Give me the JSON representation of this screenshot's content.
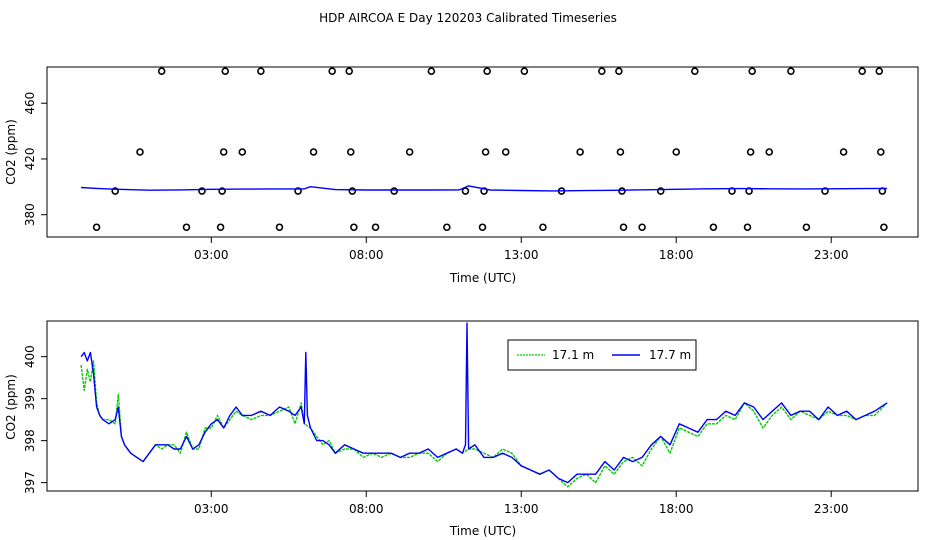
{
  "figure_title": "HDP AIRCOA E  Day 120203  Calibrated Timeseries",
  "colors": {
    "series_a": "#00cc00",
    "series_b": "#0000ff",
    "axis": "#000000",
    "markers": "#000000"
  },
  "chart_data": [
    {
      "type": "scatter",
      "title": "",
      "xlabel": "Time (UTC)",
      "ylabel": "CO2 (ppm)",
      "x_unit": "hours UTC",
      "xlim": [
        -2.3,
        25.8
      ],
      "ylim": [
        364,
        486
      ],
      "x_ticks": [
        {
          "v": 3,
          "label": "03:00"
        },
        {
          "v": 8,
          "label": "08:00"
        },
        {
          "v": 13,
          "label": "13:00"
        },
        {
          "v": 18,
          "label": "18:00"
        },
        {
          "v": 23,
          "label": "23:00"
        }
      ],
      "y_ticks": [
        {
          "v": 380,
          "label": "380"
        },
        {
          "v": 420,
          "label": "420"
        },
        {
          "v": 460,
          "label": "460"
        }
      ],
      "grid": false,
      "markers": [
        {
          "x": -0.7,
          "y": 371
        },
        {
          "x": -0.1,
          "y": 397
        },
        {
          "x": 0.7,
          "y": 425
        },
        {
          "x": 1.4,
          "y": 483
        },
        {
          "x": 2.2,
          "y": 371
        },
        {
          "x": 2.7,
          "y": 397
        },
        {
          "x": 3.3,
          "y": 371
        },
        {
          "x": 3.35,
          "y": 397
        },
        {
          "x": 3.4,
          "y": 425
        },
        {
          "x": 3.45,
          "y": 483
        },
        {
          "x": 4.0,
          "y": 425
        },
        {
          "x": 4.6,
          "y": 483
        },
        {
          "x": 5.2,
          "y": 371
        },
        {
          "x": 5.8,
          "y": 397
        },
        {
          "x": 6.3,
          "y": 425
        },
        {
          "x": 6.9,
          "y": 483
        },
        {
          "x": 7.45,
          "y": 483
        },
        {
          "x": 7.5,
          "y": 425
        },
        {
          "x": 7.55,
          "y": 397
        },
        {
          "x": 7.6,
          "y": 371
        },
        {
          "x": 8.3,
          "y": 371
        },
        {
          "x": 8.9,
          "y": 397
        },
        {
          "x": 9.4,
          "y": 425
        },
        {
          "x": 10.1,
          "y": 483
        },
        {
          "x": 10.6,
          "y": 371
        },
        {
          "x": 11.2,
          "y": 397
        },
        {
          "x": 11.75,
          "y": 371
        },
        {
          "x": 11.8,
          "y": 397
        },
        {
          "x": 11.85,
          "y": 425
        },
        {
          "x": 11.9,
          "y": 483
        },
        {
          "x": 12.5,
          "y": 425
        },
        {
          "x": 13.1,
          "y": 483
        },
        {
          "x": 13.7,
          "y": 371
        },
        {
          "x": 14.3,
          "y": 397
        },
        {
          "x": 14.9,
          "y": 425
        },
        {
          "x": 15.6,
          "y": 483
        },
        {
          "x": 16.15,
          "y": 483
        },
        {
          "x": 16.2,
          "y": 425
        },
        {
          "x": 16.25,
          "y": 397
        },
        {
          "x": 16.3,
          "y": 371
        },
        {
          "x": 16.9,
          "y": 371
        },
        {
          "x": 17.5,
          "y": 397
        },
        {
          "x": 18.0,
          "y": 425
        },
        {
          "x": 18.6,
          "y": 483
        },
        {
          "x": 19.2,
          "y": 371
        },
        {
          "x": 19.8,
          "y": 397
        },
        {
          "x": 20.3,
          "y": 371
        },
        {
          "x": 20.35,
          "y": 397
        },
        {
          "x": 20.4,
          "y": 425
        },
        {
          "x": 20.45,
          "y": 483
        },
        {
          "x": 21.0,
          "y": 425
        },
        {
          "x": 21.7,
          "y": 483
        },
        {
          "x": 22.2,
          "y": 371
        },
        {
          "x": 22.8,
          "y": 397
        },
        {
          "x": 23.4,
          "y": 425
        },
        {
          "x": 24.0,
          "y": 483
        },
        {
          "x": 24.55,
          "y": 483
        },
        {
          "x": 24.6,
          "y": 425
        },
        {
          "x": 24.65,
          "y": 397
        },
        {
          "x": 24.7,
          "y": 371
        }
      ],
      "series": [
        {
          "x": [
            -1.2,
            -0.7,
            0,
            1,
            2,
            3,
            4,
            5,
            6,
            6.2,
            7,
            8,
            9,
            10,
            11,
            11.3,
            12,
            13,
            14,
            15,
            16,
            17,
            18,
            19,
            20,
            21,
            22,
            23,
            24,
            24.8
          ],
          "values": [
            399.5,
            398.9,
            398.2,
            397.6,
            397.8,
            398.2,
            398.4,
            398.5,
            398.5,
            400.1,
            398.0,
            397.7,
            397.7,
            397.7,
            397.8,
            400.7,
            397.7,
            397.4,
            397.1,
            397.3,
            397.5,
            397.9,
            398.2,
            398.6,
            398.7,
            398.6,
            398.5,
            398.6,
            398.7,
            398.9
          ]
        }
      ]
    },
    {
      "type": "line",
      "title": "",
      "xlabel": "Time (UTC)",
      "ylabel": "CO2 (ppm)",
      "x_unit": "hours UTC",
      "xlim": [
        -2.3,
        25.8
      ],
      "ylim": [
        396.8,
        400.85
      ],
      "x_ticks": [
        {
          "v": 3,
          "label": "03:00"
        },
        {
          "v": 8,
          "label": "08:00"
        },
        {
          "v": 13,
          "label": "13:00"
        },
        {
          "v": 18,
          "label": "18:00"
        },
        {
          "v": 23,
          "label": "23:00"
        }
      ],
      "y_ticks": [
        {
          "v": 397,
          "label": "397"
        },
        {
          "v": 398,
          "label": "398"
        },
        {
          "v": 399,
          "label": "399"
        },
        {
          "v": 400,
          "label": "400"
        }
      ],
      "grid": false,
      "legend_position": "top-center",
      "series": [
        {
          "name": "17.1 m",
          "x": [
            -1.2,
            -1.1,
            -1.0,
            -0.9,
            -0.8,
            -0.7,
            -0.6,
            -0.5,
            -0.3,
            -0.1,
            0.0,
            0.1,
            0.2,
            0.4,
            0.6,
            0.8,
            1.0,
            1.2,
            1.4,
            1.6,
            1.8,
            2.0,
            2.2,
            2.4,
            2.6,
            2.8,
            3.0,
            3.2,
            3.4,
            3.6,
            3.8,
            4.0,
            4.3,
            4.6,
            4.9,
            5.2,
            5.5,
            5.7,
            5.9,
            6.0,
            6.2,
            6.4,
            6.6,
            6.8,
            7.0,
            7.3,
            7.6,
            7.9,
            8.2,
            8.5,
            8.8,
            9.1,
            9.4,
            9.7,
            10.0,
            10.3,
            10.6,
            10.9,
            11.1,
            11.3,
            11.5,
            11.8,
            12.1,
            12.4,
            12.7,
            13.0,
            13.3,
            13.6,
            13.9,
            14.2,
            14.5,
            14.8,
            15.1,
            15.4,
            15.7,
            16.0,
            16.3,
            16.6,
            16.9,
            17.2,
            17.5,
            17.8,
            18.1,
            18.4,
            18.7,
            19.0,
            19.3,
            19.6,
            19.9,
            20.2,
            20.5,
            20.8,
            21.1,
            21.4,
            21.7,
            22.0,
            22.3,
            22.6,
            22.9,
            23.2,
            23.5,
            23.8,
            24.1,
            24.4,
            24.8
          ],
          "values": [
            399.8,
            399.2,
            399.7,
            399.4,
            399.9,
            398.9,
            398.6,
            398.5,
            398.5,
            398.4,
            399.1,
            398.1,
            397.9,
            397.7,
            397.6,
            397.5,
            397.7,
            397.9,
            397.8,
            397.9,
            397.9,
            397.7,
            398.2,
            397.8,
            397.8,
            398.3,
            398.3,
            398.6,
            398.3,
            398.5,
            398.7,
            398.6,
            398.5,
            398.6,
            398.6,
            398.7,
            398.8,
            398.4,
            398.9,
            398.4,
            398.3,
            398.1,
            397.9,
            398.0,
            397.7,
            397.8,
            397.8,
            397.6,
            397.7,
            397.6,
            397.7,
            397.6,
            397.6,
            397.7,
            397.7,
            397.5,
            397.7,
            397.8,
            397.7,
            397.8,
            397.8,
            397.7,
            397.6,
            397.8,
            397.7,
            397.4,
            397.3,
            397.2,
            397.3,
            397.1,
            396.9,
            397.1,
            397.2,
            397.0,
            397.4,
            397.2,
            397.5,
            397.6,
            397.4,
            397.8,
            398.1,
            397.7,
            398.3,
            398.2,
            398.1,
            398.4,
            398.4,
            398.6,
            398.5,
            398.9,
            398.7,
            398.3,
            398.6,
            398.8,
            398.5,
            398.7,
            398.6,
            398.5,
            398.7,
            398.6,
            398.6,
            398.5,
            398.6,
            398.6,
            398.9
          ]
        },
        {
          "name": "17.7 m",
          "x": [
            -1.2,
            -1.1,
            -1.0,
            -0.9,
            -0.8,
            -0.7,
            -0.6,
            -0.5,
            -0.3,
            -0.1,
            0.0,
            0.1,
            0.2,
            0.4,
            0.6,
            0.8,
            1.0,
            1.2,
            1.4,
            1.6,
            1.8,
            2.0,
            2.2,
            2.4,
            2.6,
            2.8,
            3.0,
            3.2,
            3.4,
            3.6,
            3.8,
            4.0,
            4.3,
            4.6,
            4.9,
            5.2,
            5.5,
            5.7,
            5.9,
            6.0,
            6.05,
            6.1,
            6.2,
            6.4,
            6.6,
            6.8,
            7.0,
            7.3,
            7.6,
            7.9,
            8.2,
            8.5,
            8.8,
            9.1,
            9.4,
            9.7,
            10.0,
            10.3,
            10.6,
            10.9,
            11.1,
            11.2,
            11.25,
            11.3,
            11.5,
            11.8,
            12.1,
            12.4,
            12.7,
            13.0,
            13.3,
            13.6,
            13.9,
            14.2,
            14.5,
            14.8,
            15.1,
            15.4,
            15.7,
            16.0,
            16.3,
            16.6,
            16.9,
            17.2,
            17.5,
            17.8,
            18.1,
            18.4,
            18.7,
            19.0,
            19.3,
            19.6,
            19.9,
            20.2,
            20.5,
            20.8,
            21.1,
            21.4,
            21.7,
            22.0,
            22.3,
            22.6,
            22.9,
            23.2,
            23.5,
            23.8,
            24.1,
            24.4,
            24.8
          ],
          "values": [
            400.0,
            400.1,
            399.9,
            400.1,
            399.6,
            398.8,
            398.6,
            398.5,
            398.4,
            398.5,
            398.8,
            398.1,
            397.9,
            397.7,
            397.6,
            397.5,
            397.7,
            397.9,
            397.9,
            397.9,
            397.8,
            397.8,
            398.1,
            397.8,
            397.9,
            398.2,
            398.4,
            398.5,
            398.3,
            398.6,
            398.8,
            398.6,
            398.6,
            398.7,
            398.6,
            398.8,
            398.7,
            398.6,
            398.8,
            398.4,
            400.1,
            398.6,
            398.3,
            398.0,
            398.0,
            397.9,
            397.7,
            397.9,
            397.8,
            397.7,
            397.7,
            397.7,
            397.7,
            397.6,
            397.7,
            397.7,
            397.8,
            397.6,
            397.7,
            397.8,
            397.7,
            397.9,
            400.8,
            397.8,
            397.9,
            397.6,
            397.6,
            397.7,
            397.6,
            397.4,
            397.3,
            397.2,
            397.3,
            397.1,
            397.0,
            397.2,
            397.2,
            397.2,
            397.5,
            397.3,
            397.6,
            397.5,
            397.6,
            397.9,
            398.1,
            397.9,
            398.4,
            398.3,
            398.2,
            398.5,
            398.5,
            398.7,
            398.6,
            398.9,
            398.8,
            398.5,
            398.7,
            398.9,
            398.6,
            398.7,
            398.7,
            398.5,
            398.8,
            398.6,
            398.7,
            398.5,
            398.6,
            398.7,
            398.9
          ]
        }
      ]
    }
  ]
}
